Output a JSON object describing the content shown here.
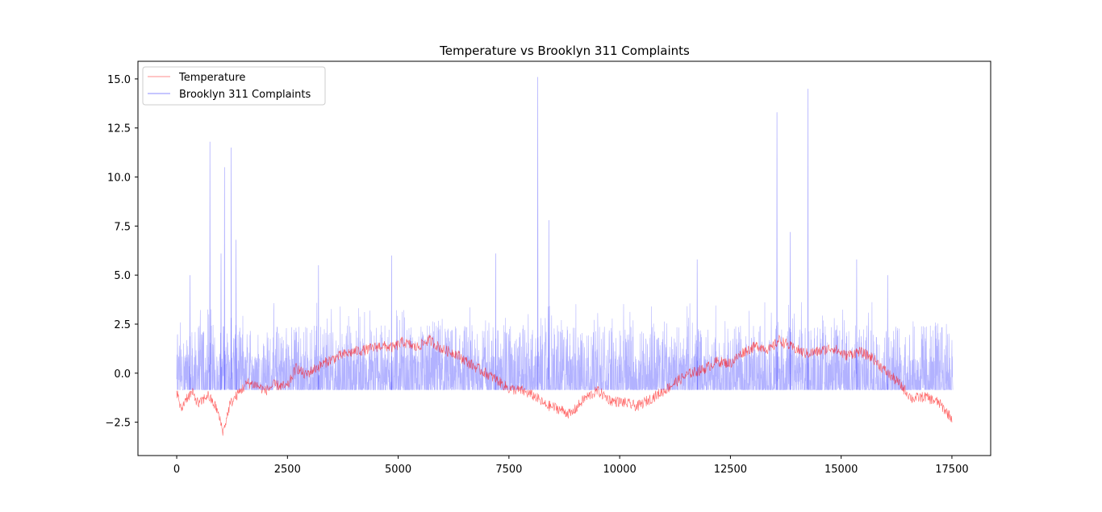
{
  "chart_data": {
    "type": "line",
    "title": "Temperature vs Brooklyn 311 Complaints",
    "xlabel": "",
    "ylabel": "",
    "xlim": [
      -875,
      18375
    ],
    "ylim": [
      -4.2,
      15.9
    ],
    "x_ticks": [
      0,
      2500,
      5000,
      7500,
      10000,
      12500,
      15000,
      17500
    ],
    "x_tick_labels": [
      "0",
      "2500",
      "5000",
      "7500",
      "10000",
      "12500",
      "15000",
      "17500"
    ],
    "y_ticks": [
      -2.5,
      0.0,
      2.5,
      5.0,
      7.5,
      10.0,
      12.5,
      15.0
    ],
    "y_tick_labels": [
      "−2.5",
      "0.0",
      "2.5",
      "5.0",
      "7.5",
      "10.0",
      "12.5",
      "15.0"
    ],
    "grid": false,
    "legend_position": "top-left",
    "series": [
      {
        "name": "Temperature",
        "color": "#ff0000",
        "x": [
          0,
          100,
          200,
          350,
          500,
          700,
          900,
          1050,
          1200,
          1400,
          1600,
          1800,
          2000,
          2200,
          2500,
          2700,
          2900,
          3100,
          3400,
          3700,
          4000,
          4300,
          4600,
          4900,
          5100,
          5400,
          5700,
          6000,
          6300,
          6600,
          6900,
          7200,
          7500,
          7800,
          8100,
          8300,
          8600,
          8900,
          9200,
          9500,
          9800,
          10100,
          10400,
          10700,
          11000,
          11300,
          11600,
          11900,
          12200,
          12500,
          12800,
          13100,
          13400,
          13600,
          13900,
          14200,
          14500,
          14800,
          15100,
          15400,
          15700,
          16000,
          16300,
          16600,
          16900,
          17200,
          17500
        ],
        "values": [
          -0.9,
          -1.9,
          -1.3,
          -1.0,
          -1.6,
          -1.1,
          -1.8,
          -3.0,
          -1.6,
          -1.0,
          -0.5,
          -0.6,
          -0.9,
          -0.6,
          -0.7,
          0.3,
          -0.1,
          0.2,
          0.6,
          0.9,
          1.1,
          1.2,
          1.4,
          1.3,
          1.6,
          1.3,
          1.7,
          1.2,
          1.0,
          0.5,
          0.1,
          -0.3,
          -0.8,
          -0.9,
          -1.2,
          -1.6,
          -1.8,
          -2.1,
          -1.3,
          -0.9,
          -1.4,
          -1.5,
          -1.7,
          -1.3,
          -0.9,
          -0.4,
          0.0,
          0.2,
          0.6,
          0.5,
          1.1,
          1.4,
          1.2,
          1.7,
          1.3,
          1.0,
          1.1,
          1.3,
          0.9,
          1.1,
          0.8,
          0.1,
          -0.5,
          -1.3,
          -1.2,
          -1.5,
          -2.3
        ],
        "values_note": ""
      },
      {
        "name": "Brooklyn 311 Complaints",
        "color": "#0000ff",
        "baseline": -0.85,
        "typical_range": [
          -0.85,
          2.5
        ],
        "peaks": [
          {
            "x": 750,
            "y": 11.8
          },
          {
            "x": 1080,
            "y": 10.5
          },
          {
            "x": 1230,
            "y": 11.5
          },
          {
            "x": 1340,
            "y": 6.8
          },
          {
            "x": 1000,
            "y": 6.1
          },
          {
            "x": 300,
            "y": 5.0
          },
          {
            "x": 3200,
            "y": 5.5
          },
          {
            "x": 4850,
            "y": 6.0
          },
          {
            "x": 7200,
            "y": 6.1
          },
          {
            "x": 8150,
            "y": 15.1
          },
          {
            "x": 8400,
            "y": 7.8
          },
          {
            "x": 11750,
            "y": 5.8
          },
          {
            "x": 13550,
            "y": 13.3
          },
          {
            "x": 13850,
            "y": 7.2
          },
          {
            "x": 14250,
            "y": 14.5
          },
          {
            "x": 15350,
            "y": 5.8
          },
          {
            "x": 16050,
            "y": 5.0
          }
        ]
      }
    ]
  }
}
